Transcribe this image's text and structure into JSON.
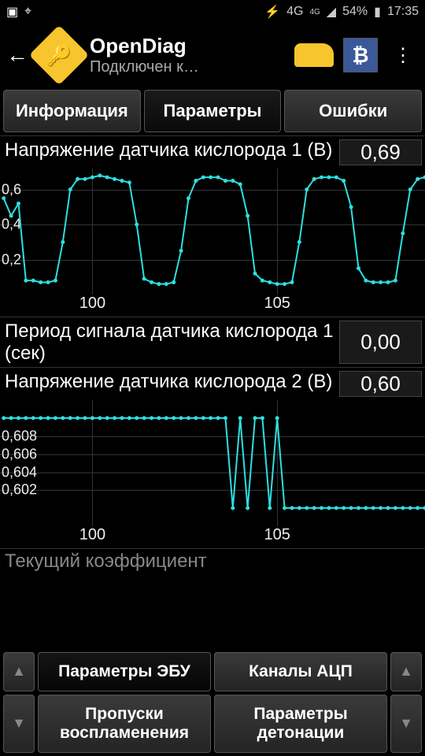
{
  "statusbar": {
    "time": "17:35",
    "battery": "54%",
    "network": "4G"
  },
  "header": {
    "title": "OpenDiag",
    "subtitle": "Подключен к…"
  },
  "tabs": {
    "info": "Информация",
    "params": "Параметры",
    "errors": "Ошибки"
  },
  "params": [
    {
      "label": "Напряжение датчика кислорода 1 (В)",
      "value": "0,69",
      "chart": {
        "type": "line",
        "line_color": "#2de0e0",
        "marker_color": "#2de0e0",
        "background": "#000000",
        "grid_color": "#333333",
        "height": 160,
        "ylim": [
          0,
          0.72
        ],
        "yticks": [
          0.2,
          0.4,
          0.6
        ],
        "ytick_labels": [
          "0,2",
          "0,4",
          "0,6"
        ],
        "xlim": [
          97.5,
          109
        ],
        "xticks": [
          100,
          105
        ],
        "xtick_labels": [
          "100",
          "105"
        ],
        "points": [
          [
            97.6,
            0.55
          ],
          [
            97.8,
            0.45
          ],
          [
            98.0,
            0.52
          ],
          [
            98.2,
            0.08
          ],
          [
            98.4,
            0.08
          ],
          [
            98.6,
            0.07
          ],
          [
            98.8,
            0.07
          ],
          [
            99.0,
            0.08
          ],
          [
            99.2,
            0.3
          ],
          [
            99.4,
            0.6
          ],
          [
            99.6,
            0.66
          ],
          [
            99.8,
            0.66
          ],
          [
            100.0,
            0.67
          ],
          [
            100.2,
            0.68
          ],
          [
            100.4,
            0.67
          ],
          [
            100.6,
            0.66
          ],
          [
            100.8,
            0.65
          ],
          [
            101.0,
            0.64
          ],
          [
            101.2,
            0.4
          ],
          [
            101.4,
            0.09
          ],
          [
            101.6,
            0.07
          ],
          [
            101.8,
            0.06
          ],
          [
            102.0,
            0.06
          ],
          [
            102.2,
            0.07
          ],
          [
            102.4,
            0.25
          ],
          [
            102.6,
            0.55
          ],
          [
            102.8,
            0.65
          ],
          [
            103.0,
            0.67
          ],
          [
            103.2,
            0.67
          ],
          [
            103.4,
            0.67
          ],
          [
            103.6,
            0.65
          ],
          [
            103.8,
            0.65
          ],
          [
            104.0,
            0.63
          ],
          [
            104.2,
            0.45
          ],
          [
            104.4,
            0.12
          ],
          [
            104.6,
            0.08
          ],
          [
            104.8,
            0.07
          ],
          [
            105.0,
            0.06
          ],
          [
            105.2,
            0.06
          ],
          [
            105.4,
            0.07
          ],
          [
            105.6,
            0.3
          ],
          [
            105.8,
            0.6
          ],
          [
            106.0,
            0.66
          ],
          [
            106.2,
            0.67
          ],
          [
            106.4,
            0.67
          ],
          [
            106.6,
            0.67
          ],
          [
            106.8,
            0.65
          ],
          [
            107.0,
            0.5
          ],
          [
            107.2,
            0.15
          ],
          [
            107.4,
            0.08
          ],
          [
            107.6,
            0.07
          ],
          [
            107.8,
            0.07
          ],
          [
            108.0,
            0.07
          ],
          [
            108.2,
            0.08
          ],
          [
            108.4,
            0.35
          ],
          [
            108.6,
            0.6
          ],
          [
            108.8,
            0.66
          ],
          [
            109.0,
            0.67
          ]
        ]
      }
    },
    {
      "label": "Период сигнала датчика кислорода 1 (сек)",
      "value": "0,00",
      "chart": null
    },
    {
      "label": "Напряжение датчика кислорода 2 (В)",
      "value": "0,60",
      "chart": {
        "type": "line",
        "line_color": "#2de0e0",
        "marker_color": "#2de0e0",
        "background": "#000000",
        "grid_color": "#333333",
        "height": 160,
        "ylim": [
          0.598,
          0.612
        ],
        "yticks": [
          0.602,
          0.604,
          0.606,
          0.608
        ],
        "ytick_labels": [
          "0,602",
          "0,604",
          "0,606",
          "0,608"
        ],
        "xlim": [
          97.5,
          109
        ],
        "xticks": [
          100,
          105
        ],
        "xtick_labels": [
          "100",
          "105"
        ],
        "points": [
          [
            97.6,
            0.61
          ],
          [
            97.8,
            0.61
          ],
          [
            98.0,
            0.61
          ],
          [
            98.2,
            0.61
          ],
          [
            98.4,
            0.61
          ],
          [
            98.6,
            0.61
          ],
          [
            98.8,
            0.61
          ],
          [
            99.0,
            0.61
          ],
          [
            99.2,
            0.61
          ],
          [
            99.4,
            0.61
          ],
          [
            99.6,
            0.61
          ],
          [
            99.8,
            0.61
          ],
          [
            100.0,
            0.61
          ],
          [
            100.2,
            0.61
          ],
          [
            100.4,
            0.61
          ],
          [
            100.6,
            0.61
          ],
          [
            100.8,
            0.61
          ],
          [
            101.0,
            0.61
          ],
          [
            101.2,
            0.61
          ],
          [
            101.4,
            0.61
          ],
          [
            101.6,
            0.61
          ],
          [
            101.8,
            0.61
          ],
          [
            102.0,
            0.61
          ],
          [
            102.2,
            0.61
          ],
          [
            102.4,
            0.61
          ],
          [
            102.6,
            0.61
          ],
          [
            102.8,
            0.61
          ],
          [
            103.0,
            0.61
          ],
          [
            103.2,
            0.61
          ],
          [
            103.4,
            0.61
          ],
          [
            103.6,
            0.61
          ],
          [
            103.8,
            0.6
          ],
          [
            104.0,
            0.61
          ],
          [
            104.2,
            0.6
          ],
          [
            104.4,
            0.61
          ],
          [
            104.6,
            0.61
          ],
          [
            104.8,
            0.6
          ],
          [
            105.0,
            0.61
          ],
          [
            105.2,
            0.6
          ],
          [
            105.4,
            0.6
          ],
          [
            105.6,
            0.6
          ],
          [
            105.8,
            0.6
          ],
          [
            106.0,
            0.6
          ],
          [
            106.2,
            0.6
          ],
          [
            106.4,
            0.6
          ],
          [
            106.6,
            0.6
          ],
          [
            106.8,
            0.6
          ],
          [
            107.0,
            0.6
          ],
          [
            107.2,
            0.6
          ],
          [
            107.4,
            0.6
          ],
          [
            107.6,
            0.6
          ],
          [
            107.8,
            0.6
          ],
          [
            108.0,
            0.6
          ],
          [
            108.2,
            0.6
          ],
          [
            108.4,
            0.6
          ],
          [
            108.6,
            0.6
          ],
          [
            108.8,
            0.6
          ],
          [
            109.0,
            0.6
          ]
        ]
      }
    }
  ],
  "partial_next": "Текущий коэффициент",
  "bottom": {
    "ecu": "Параметры ЭБУ",
    "adc": "Каналы АЦП",
    "misfire": "Пропуски воспламенения",
    "knock": "Параметры детонации"
  }
}
